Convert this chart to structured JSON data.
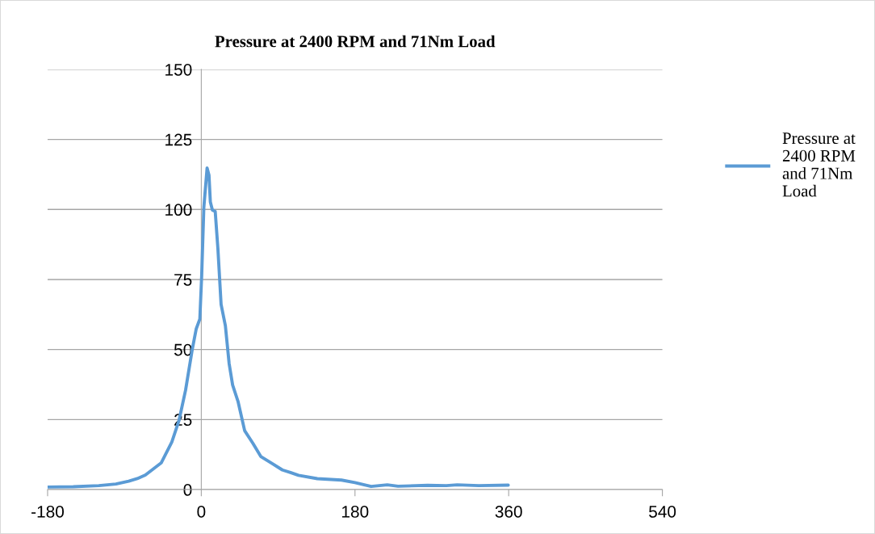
{
  "chart_data": {
    "type": "line",
    "title": "Pressure at 2400 RPM and 71Nm Load",
    "x": [
      -180,
      -150,
      -120,
      -100,
      -85,
      -75,
      -65.5,
      -47,
      -34.5,
      -26,
      -18.4,
      -10.6,
      -5.9,
      -1.7,
      0.5,
      3,
      6.8,
      9,
      10.6,
      13,
      16.3,
      19.4,
      23.2,
      28.2,
      32.6,
      36.7,
      43,
      50.8,
      60.3,
      69.7,
      82.4,
      95,
      104.4,
      113.9,
      135.9,
      164.2,
      180,
      198.9,
      217.8,
      230.4,
      265,
      287,
      299.7,
      325,
      359.5
    ],
    "series": [
      {
        "name": "Pressure at 2400 RPM and 71Nm Load",
        "color": "#5b9bd5",
        "values": [
          0.9,
          1.0,
          1.4,
          2.0,
          3.0,
          3.9,
          5.2,
          9.5,
          17,
          24.8,
          35.5,
          50,
          57.4,
          60.9,
          76.7,
          100.8,
          114.8,
          112.3,
          102.7,
          99.8,
          99.3,
          86.3,
          66.1,
          58.5,
          45,
          37.3,
          31.5,
          21,
          16.6,
          11.8,
          9.4,
          7,
          6.1,
          5.1,
          3.9,
          3.4,
          2.5,
          1.1,
          1.7,
          1.2,
          1.5,
          1.4,
          1.7,
          1.4,
          1.6
        ]
      }
    ],
    "xlim": [
      -180,
      540
    ],
    "xticks": [
      -180,
      0,
      180,
      360,
      540
    ],
    "ylim": [
      0,
      150
    ],
    "yticks": [
      0,
      25,
      50,
      75,
      100,
      125,
      150
    ],
    "grid": "y",
    "legend": "right",
    "marker": "none",
    "line_style": "solid"
  }
}
